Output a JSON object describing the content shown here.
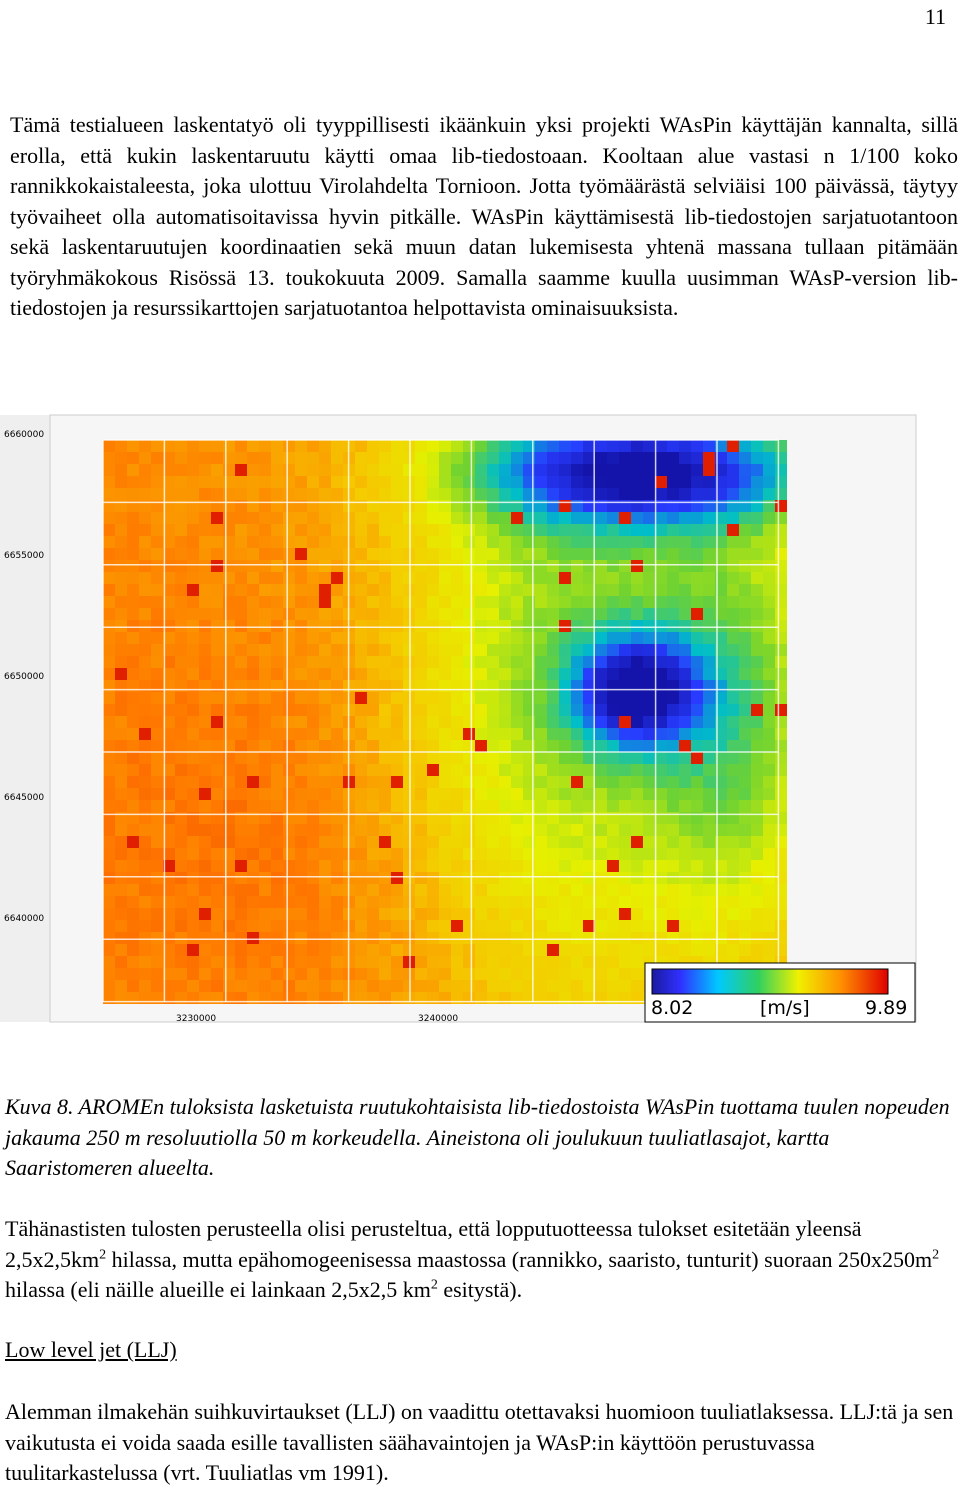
{
  "page_number": "11",
  "paragraphs": [
    "Tämä testialueen laskentatyö oli tyyppillisesti ikäänkuin yksi projekti WAsPin käyttäjän kannalta, sillä erolla, että kukin laskentaruutu käytti omaa lib-tiedostoaan. Kooltaan alue vastasi n 1/100 koko rannikkokaistaleesta, joka ulottuu Virolahdelta Tornioon. Jotta työmäärästä selviäisi 100 päivässä, täytyy työvaiheet olla automatisoitavissa hyvin pitkälle. WAsPin käyttämisestä lib-tiedostojen sarjatuotantoon sekä laskentaruutujen koordinaatien sekä muun datan lukemisesta yhtenä massana tullaan pitämään työryhmäkokous Risössä 13. toukokuuta 2009. Samalla saamme kuulla uusimman WAsP-version lib-tiedostojen ja resurssikarttojen sarjatuotantoa helpottavista ominaisuuksista."
  ],
  "figure": {
    "y_labels": [
      "6660000",
      "6655000",
      "6650000",
      "6645000",
      "6640000"
    ],
    "x_labels": [
      "3230000",
      "3240000"
    ],
    "colorbar": {
      "min": "8.02",
      "unit": "[m/s]",
      "max": "9.89"
    }
  },
  "caption": "Kuva 8. AROMEn tuloksista lasketuista ruutukohtaisista lib-tiedostoista WAsPin tuottama tuulen nopeuden jakauma 250 m resoluutiolla 50 m korkeudella. Aineistona oli joulukuun tuuliatlasajot, kartta Saaristomeren alueelta.",
  "paragraph2": [
    "Tähänastisten tulosten perusteella olisi perusteltua, että lopputuotteessa tulokset esitetään yleensä 2,5x2,5km",
    "2",
    " hilassa, mutta epähomogeenisessa maastossa (rannikko, saaristo, tunturit) suoraan 250x250m",
    "2",
    " hilassa (eli näille alueille ei lainkaan 2,5x2,5 km",
    "2",
    " esitystä)."
  ],
  "heading": "Low level jet (LLJ)",
  "paragraph3": "Alemman ilmakehän suihkuvirtaukset (LLJ) on vaadittu otettavaksi huomioon tuuliatlaksessa. LLJ:tä ja sen vaikutusta ei voida saada esille tavallisten säähavaintojen ja WAsP:in käyttöön perustuvassa tuulitarkastelussa (vrt. Tuuliatlas vm 1991)."
}
